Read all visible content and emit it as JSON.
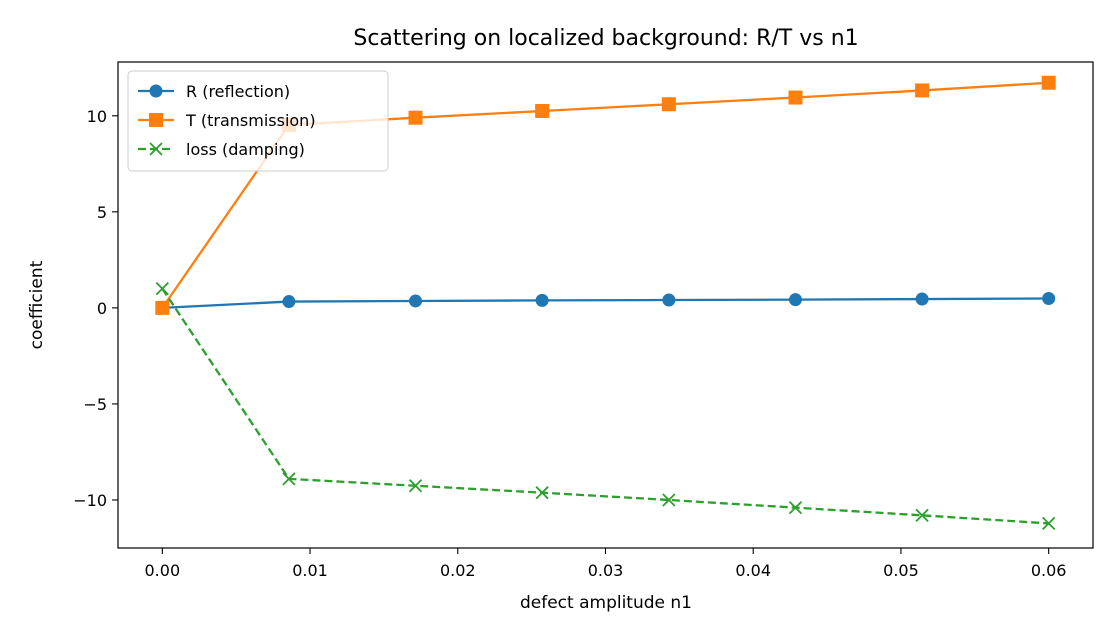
{
  "chart_data": {
    "type": "line",
    "title": "Scattering on localized background: R/T vs n1",
    "xlabel": "defect amplitude n1",
    "ylabel": "coefficient",
    "xlim": [
      -0.003,
      0.063
    ],
    "ylim": [
      -12.5,
      12.8
    ],
    "xticks": [
      0.0,
      0.01,
      0.02,
      0.03,
      0.04,
      0.05,
      0.06
    ],
    "xtick_labels": [
      "0.00",
      "0.01",
      "0.02",
      "0.03",
      "0.04",
      "0.05",
      "0.06"
    ],
    "yticks": [
      -10,
      -5,
      0,
      5,
      10
    ],
    "ytick_labels": [
      "−10",
      "−5",
      "0",
      "5",
      "10"
    ],
    "grid": false,
    "legend_position": "upper-left",
    "x": [
      0.0,
      0.00857,
      0.01714,
      0.02571,
      0.03429,
      0.04286,
      0.05143,
      0.06
    ],
    "series": [
      {
        "name": "R (reflection)",
        "color": "#1f77b4",
        "marker": "circle",
        "linestyle": "solid",
        "values": [
          0.0,
          0.33,
          0.36,
          0.39,
          0.41,
          0.43,
          0.46,
          0.49
        ]
      },
      {
        "name": "T (transmission)",
        "color": "#ff7f0e",
        "marker": "square",
        "linestyle": "solid",
        "values": [
          0.0,
          9.52,
          9.9,
          10.25,
          10.6,
          10.95,
          11.32,
          11.72
        ]
      },
      {
        "name": "loss (damping)",
        "color": "#2ca02c",
        "marker": "x",
        "linestyle": "dashed",
        "values": [
          1.0,
          -8.9,
          -9.26,
          -9.62,
          -10.0,
          -10.4,
          -10.8,
          -11.22
        ]
      }
    ]
  }
}
